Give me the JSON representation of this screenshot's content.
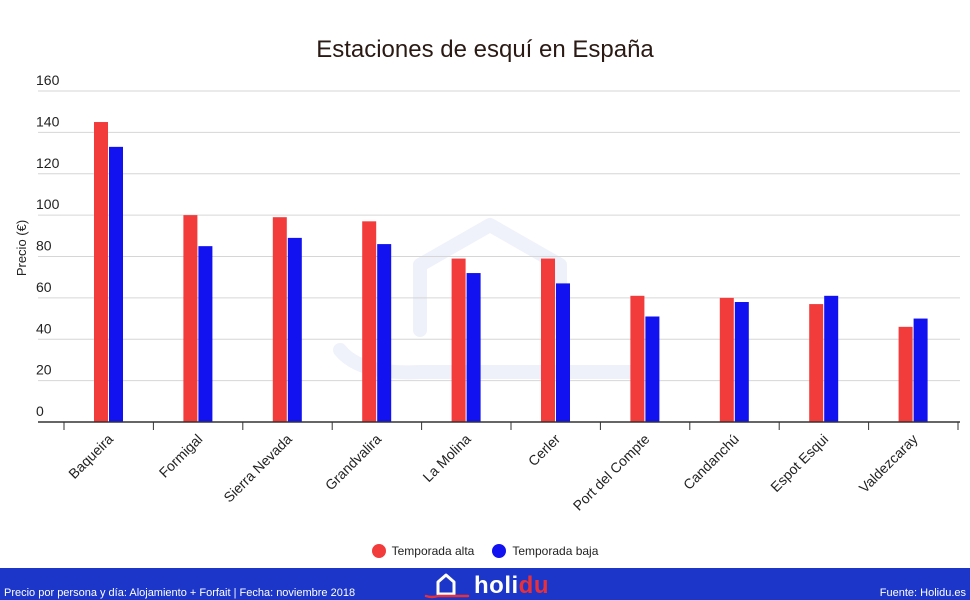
{
  "chart_data": {
    "type": "bar",
    "title": "Estaciones de esquí en España",
    "ylabel": "Precio (€)",
    "xlabel": "",
    "ylim": [
      0,
      160
    ],
    "yticks": [
      0,
      20,
      40,
      60,
      80,
      100,
      120,
      140,
      160
    ],
    "grid": true,
    "legend_position": "bottom",
    "categories": [
      "Baqueira",
      "Formigal",
      "Sierra Nevada",
      "Grandvalira",
      "La Molina",
      "Cerler",
      "Port del Compte",
      "Candanchú",
      "Espot Esqui",
      "Valdezcaray"
    ],
    "series": [
      {
        "name": "Temporada alta",
        "color": "#f23b3b",
        "values": [
          145,
          100,
          99,
          97,
          79,
          79,
          61,
          60,
          57,
          46
        ]
      },
      {
        "name": "Temporada baja",
        "color": "#1212f0",
        "values": [
          133,
          85,
          89,
          86,
          72,
          67,
          51,
          58,
          61,
          50
        ]
      }
    ]
  },
  "footer": {
    "note": "Precio por persona y día: Alojamiento + Forfait | Fecha: noviembre 2018",
    "brand_prefix": "holi",
    "brand_suffix": "du",
    "source": "Fuente: Holidu.es",
    "background": "#1b36c8",
    "brand_accent": "#e8303a",
    "brand_icon": "house-pin-icon"
  },
  "watermark": {
    "icon": "house-watermark-icon"
  }
}
